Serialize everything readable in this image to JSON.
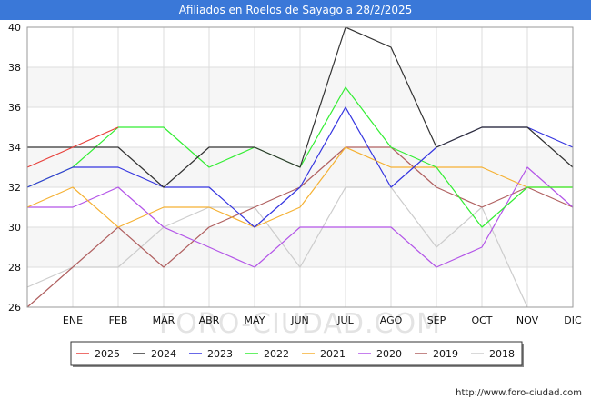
{
  "chart_data": {
    "type": "line",
    "title": "Afiliados en Roelos de Sayago a 28/2/2025",
    "categories": [
      "",
      "ENE",
      "FEB",
      "MAR",
      "ABR",
      "MAY",
      "JUN",
      "JUL",
      "AGO",
      "SEP",
      "OCT",
      "NOV",
      "DIC"
    ],
    "ylim": [
      26,
      40
    ],
    "yticks": [
      26,
      28,
      30,
      32,
      34,
      36,
      38,
      40
    ],
    "grid": true,
    "legend_position": "bottom",
    "watermark": "FORO-CIUDAD.COM",
    "series": [
      {
        "name": "2025",
        "color": "#e8403a",
        "values": [
          33,
          34,
          35,
          null,
          null,
          null,
          null,
          null,
          null,
          null,
          null,
          null,
          null
        ]
      },
      {
        "name": "2024",
        "color": "#333333",
        "values": [
          34,
          34,
          34,
          32,
          34,
          34,
          33,
          40,
          39,
          34,
          35,
          35,
          33
        ]
      },
      {
        "name": "2023",
        "color": "#3535e0",
        "values": [
          32,
          33,
          33,
          32,
          32,
          30,
          32,
          36,
          32,
          34,
          35,
          35,
          34
        ]
      },
      {
        "name": "2022",
        "color": "#33ee33",
        "values": [
          32,
          33,
          35,
          35,
          33,
          34,
          33,
          37,
          34,
          33,
          30,
          32,
          32
        ]
      },
      {
        "name": "2021",
        "color": "#f5b133",
        "values": [
          31,
          32,
          30,
          31,
          31,
          30,
          31,
          34,
          33,
          33,
          33,
          32,
          32
        ]
      },
      {
        "name": "2020",
        "color": "#b355e8",
        "values": [
          31,
          31,
          32,
          30,
          29,
          28,
          30,
          30,
          30,
          28,
          29,
          33,
          31
        ]
      },
      {
        "name": "2019",
        "color": "#b06060",
        "values": [
          26,
          28,
          30,
          28,
          30,
          31,
          32,
          34,
          34,
          32,
          31,
          32,
          31
        ]
      },
      {
        "name": "2018",
        "color": "#cccccc",
        "values": [
          27,
          28,
          28,
          30,
          31,
          31,
          28,
          32,
          32,
          29,
          31,
          26,
          null
        ]
      }
    ]
  },
  "footer": {
    "url": "http://www.foro-ciudad.com"
  }
}
